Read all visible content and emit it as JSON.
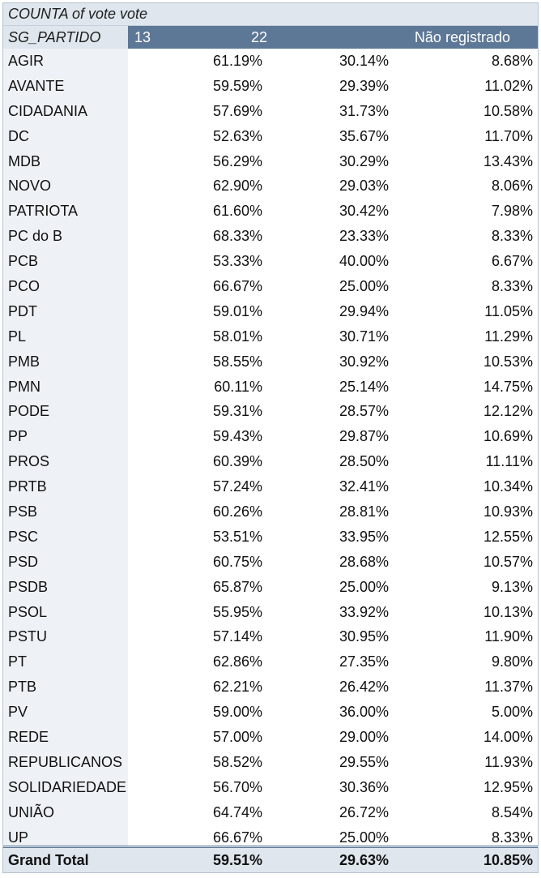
{
  "pivot": {
    "title": "COUNTA of vote  vote",
    "row_header": "SG_PARTIDO",
    "columns": [
      "13",
      "22",
      "Não registrado"
    ],
    "rows": [
      {
        "party": "AGIR",
        "v13": "61.19%",
        "v22": "30.14%",
        "vnr": "8.68%"
      },
      {
        "party": "AVANTE",
        "v13": "59.59%",
        "v22": "29.39%",
        "vnr": "11.02%"
      },
      {
        "party": "CIDADANIA",
        "v13": "57.69%",
        "v22": "31.73%",
        "vnr": "10.58%"
      },
      {
        "party": "DC",
        "v13": "52.63%",
        "v22": "35.67%",
        "vnr": "11.70%"
      },
      {
        "party": "MDB",
        "v13": "56.29%",
        "v22": "30.29%",
        "vnr": "13.43%"
      },
      {
        "party": "NOVO",
        "v13": "62.90%",
        "v22": "29.03%",
        "vnr": "8.06%"
      },
      {
        "party": "PATRIOTA",
        "v13": "61.60%",
        "v22": "30.42%",
        "vnr": "7.98%"
      },
      {
        "party": "PC do B",
        "v13": "68.33%",
        "v22": "23.33%",
        "vnr": "8.33%"
      },
      {
        "party": "PCB",
        "v13": "53.33%",
        "v22": "40.00%",
        "vnr": "6.67%"
      },
      {
        "party": "PCO",
        "v13": "66.67%",
        "v22": "25.00%",
        "vnr": "8.33%"
      },
      {
        "party": "PDT",
        "v13": "59.01%",
        "v22": "29.94%",
        "vnr": "11.05%"
      },
      {
        "party": "PL",
        "v13": "58.01%",
        "v22": "30.71%",
        "vnr": "11.29%"
      },
      {
        "party": "PMB",
        "v13": "58.55%",
        "v22": "30.92%",
        "vnr": "10.53%"
      },
      {
        "party": "PMN",
        "v13": "60.11%",
        "v22": "25.14%",
        "vnr": "14.75%"
      },
      {
        "party": "PODE",
        "v13": "59.31%",
        "v22": "28.57%",
        "vnr": "12.12%"
      },
      {
        "party": "PP",
        "v13": "59.43%",
        "v22": "29.87%",
        "vnr": "10.69%"
      },
      {
        "party": "PROS",
        "v13": "60.39%",
        "v22": "28.50%",
        "vnr": "11.11%"
      },
      {
        "party": "PRTB",
        "v13": "57.24%",
        "v22": "32.41%",
        "vnr": "10.34%"
      },
      {
        "party": "PSB",
        "v13": "60.26%",
        "v22": "28.81%",
        "vnr": "10.93%"
      },
      {
        "party": "PSC",
        "v13": "53.51%",
        "v22": "33.95%",
        "vnr": "12.55%"
      },
      {
        "party": "PSD",
        "v13": "60.75%",
        "v22": "28.68%",
        "vnr": "10.57%"
      },
      {
        "party": "PSDB",
        "v13": "65.87%",
        "v22": "25.00%",
        "vnr": "9.13%"
      },
      {
        "party": "PSOL",
        "v13": "55.95%",
        "v22": "33.92%",
        "vnr": "10.13%"
      },
      {
        "party": "PSTU",
        "v13": "57.14%",
        "v22": "30.95%",
        "vnr": "11.90%"
      },
      {
        "party": "PT",
        "v13": "62.86%",
        "v22": "27.35%",
        "vnr": "9.80%"
      },
      {
        "party": "PTB",
        "v13": "62.21%",
        "v22": "26.42%",
        "vnr": "11.37%"
      },
      {
        "party": "PV",
        "v13": "59.00%",
        "v22": "36.00%",
        "vnr": "5.00%"
      },
      {
        "party": "REDE",
        "v13": "57.00%",
        "v22": "29.00%",
        "vnr": "14.00%"
      },
      {
        "party": "REPUBLICANOS",
        "v13": "58.52%",
        "v22": "29.55%",
        "vnr": "11.93%"
      },
      {
        "party": "SOLIDARIEDADE",
        "v13": "56.70%",
        "v22": "30.36%",
        "vnr": "12.95%"
      },
      {
        "party": "UNIÃO",
        "v13": "64.74%",
        "v22": "26.72%",
        "vnr": "8.54%"
      },
      {
        "party": "UP",
        "v13": "66.67%",
        "v22": "25.00%",
        "vnr": "8.33%"
      }
    ],
    "total": {
      "label": "Grand Total",
      "v13": "59.51%",
      "v22": "29.63%",
      "vnr": "10.85%"
    }
  }
}
